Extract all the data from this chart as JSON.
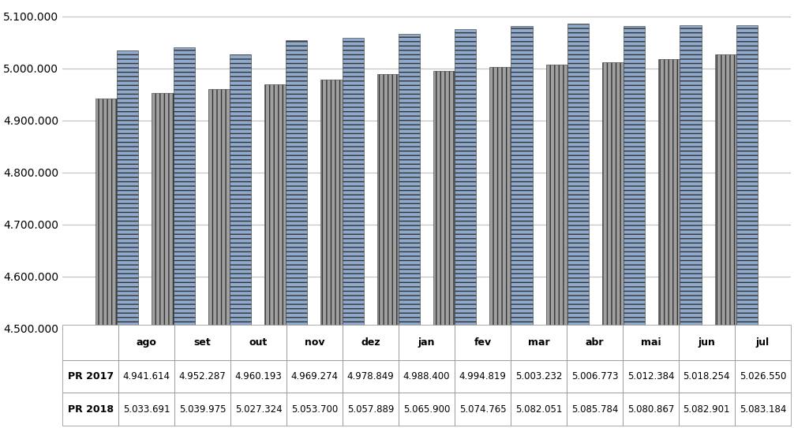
{
  "categories": [
    "ago",
    "set",
    "out",
    "nov",
    "dez",
    "jan",
    "fev",
    "mar",
    "abr",
    "mai",
    "jun",
    "jul"
  ],
  "pr2017": [
    4941614,
    4952287,
    4960193,
    4969274,
    4978849,
    4988400,
    4994819,
    5003232,
    5006773,
    5012384,
    5018254,
    5026550
  ],
  "pr2018": [
    5033691,
    5039975,
    5027324,
    5053700,
    5057889,
    5065900,
    5074765,
    5082051,
    5085784,
    5080867,
    5082901,
    5083184
  ],
  "pr2017_labels": [
    "4.941.614",
    "4.952.287",
    "4.960.193",
    "4.969.274",
    "4.978.849",
    "4.988.400",
    "4.994.819",
    "5.003.232",
    "5.006.773",
    "5.012.384",
    "5.018.254",
    "5.026.550"
  ],
  "pr2018_labels": [
    "5.033.691",
    "5.039.975",
    "5.027.324",
    "5.053.700",
    "5.057.889",
    "5.065.900",
    "5.074.765",
    "5.082.051",
    "5.085.784",
    "5.080.867",
    "5.082.901",
    "5.083.184"
  ],
  "ylim_min": 4500000,
  "ylim_max": 5125000,
  "ytick_values": [
    4500000,
    4600000,
    4700000,
    4800000,
    4900000,
    5000000,
    5100000
  ],
  "color_2017": "#A0A0A0",
  "color_2018": "#8FAACC",
  "legend_label_2017": "PR 2017",
  "legend_label_2018": "PR 2018",
  "background_color": "#FFFFFF",
  "grid_color": "#C0C0C0",
  "bar_width": 0.38
}
